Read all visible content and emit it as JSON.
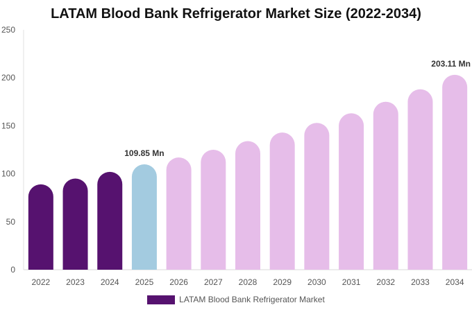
{
  "chart_data": {
    "type": "bar",
    "title": "LATAM Blood Bank Refrigerator Market Size (2022-2034)",
    "xlabel": "",
    "ylabel": "",
    "ylim": [
      0,
      250
    ],
    "yticks": [
      0,
      50,
      100,
      150,
      200,
      250
    ],
    "categories": [
      "2022",
      "2023",
      "2024",
      "2025",
      "2026",
      "2027",
      "2028",
      "2029",
      "2030",
      "2031",
      "2032",
      "2033",
      "2034"
    ],
    "series": [
      {
        "name": "LATAM Blood Bank Refrigerator Market",
        "values": [
          89,
          95,
          102,
          109.85,
          117,
          125,
          134,
          143,
          153,
          163,
          175,
          188,
          203.11
        ]
      }
    ],
    "data_labels": [
      {
        "category": "2025",
        "text": "109.85 Mn"
      },
      {
        "category": "2034",
        "text": "203.11 Mn"
      }
    ],
    "colors": {
      "historical": "#56126f",
      "base_year": "#a3cbe0",
      "forecast": "#e6bde9",
      "legend": "#56126f"
    },
    "grid": false,
    "legend_position": "bottom-center"
  }
}
